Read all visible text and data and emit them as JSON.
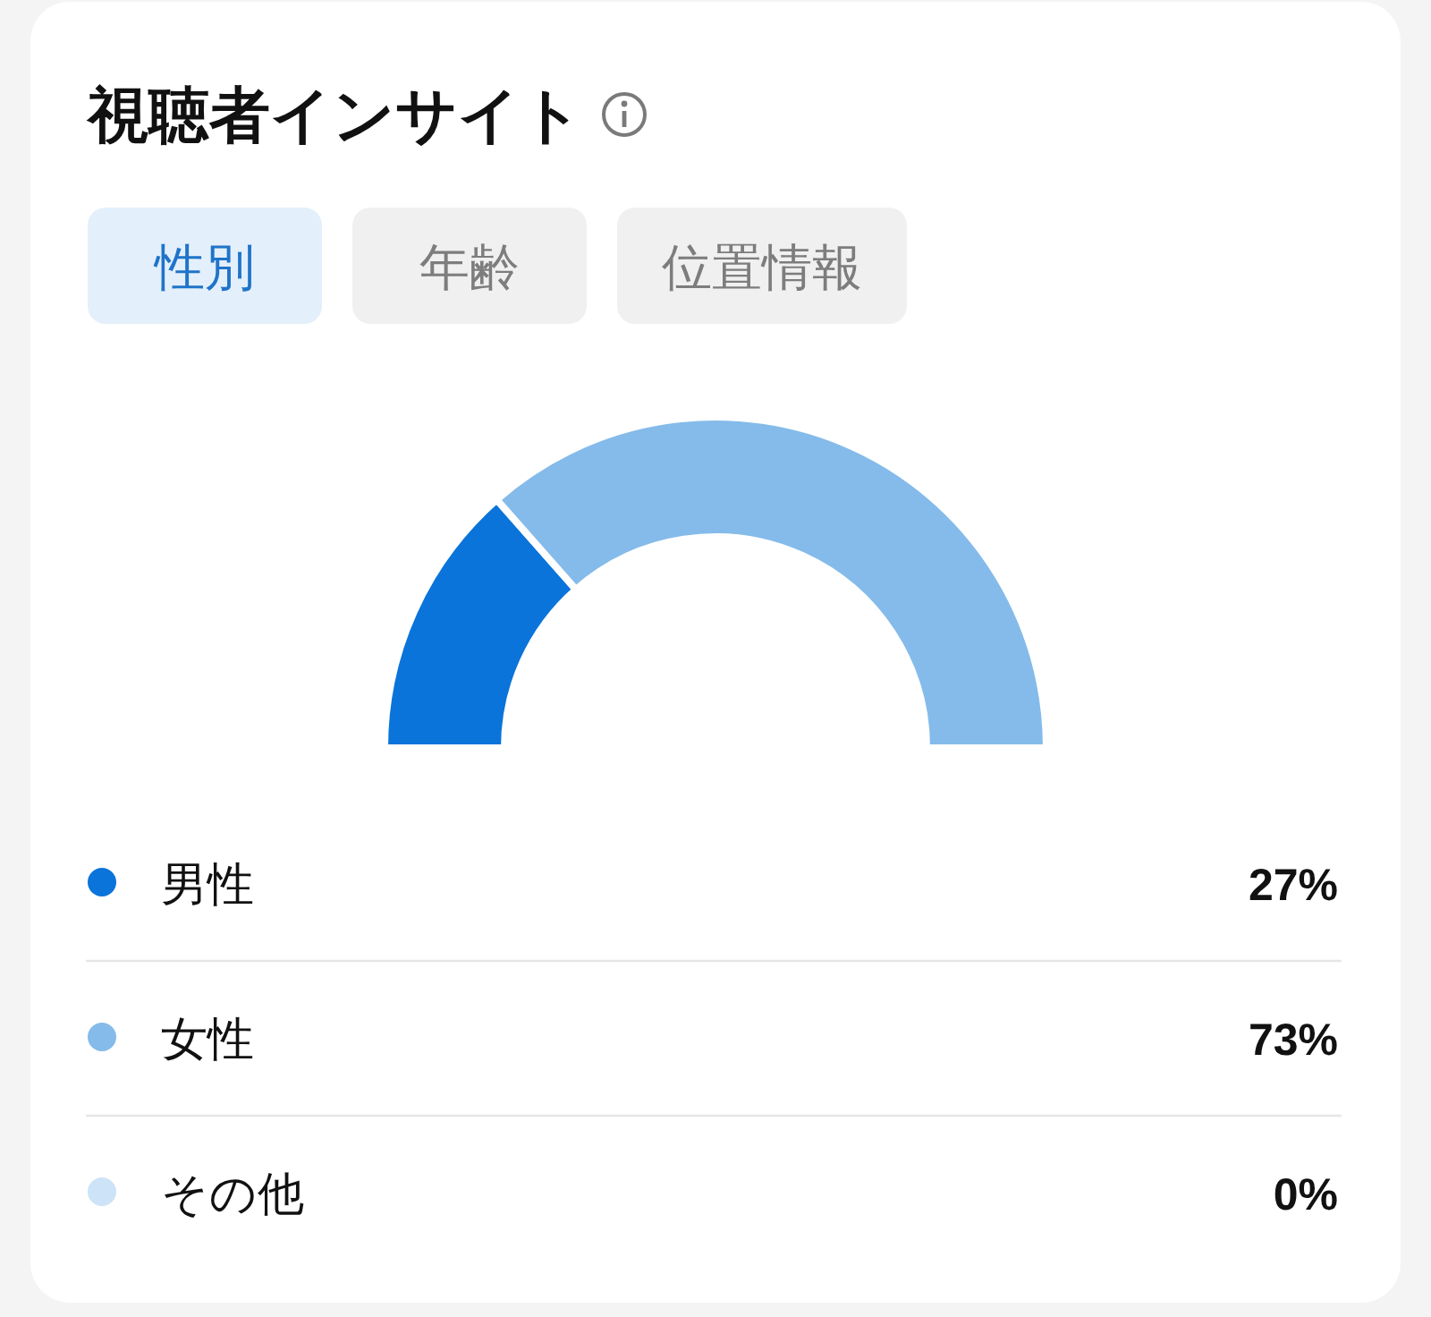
{
  "chart_data": {
    "type": "donut",
    "title": "視聴者インサイト",
    "annotations": [
      "性別",
      "年齢",
      "位置情報"
    ],
    "categories": [
      "男性",
      "女性",
      "その他"
    ],
    "values": [
      27,
      73,
      0
    ],
    "colors": [
      "#0a74da",
      "#84bbea",
      "#cde3f7"
    ],
    "value_labels": [
      "27%",
      "73%",
      "0%"
    ],
    "legend": "bottom"
  }
}
